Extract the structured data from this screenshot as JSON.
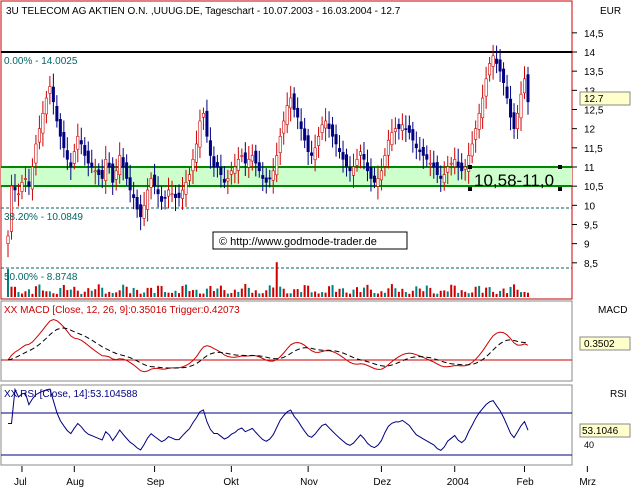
{
  "header": {
    "title": "3U TELECOM AG AKTIEN O.N. ,UUUG.DE, Tageschart - 10.07.2003 - 16.03.2004 - 12.7",
    "currency": "EUR"
  },
  "annotations": {
    "fib_top": "0.00% - 14.0025",
    "fib_mid": "38.20% - 10.0849",
    "fib_bottom": "50.00% - 8.8748",
    "zone_label": "10,58-11,0",
    "copyright": "© http://www.godmode-trader.de",
    "last_price": "12.7"
  },
  "macd": {
    "label": "XX MACD [Close, 12, 26, 9]:0.35016 Trigger:0.42073",
    "axis_title": "MACD",
    "current": "0.3502"
  },
  "rsi": {
    "label": "XX RSI [Close, 14]:53.104588",
    "axis_title": "RSI",
    "current": "53.1046"
  },
  "colors": {
    "up": "#cc0000",
    "down": "#000080",
    "zone": "#ccffcc",
    "zone_edge": "#008800",
    "fib": "#006666",
    "macd": "#cc0000",
    "trigger": "#000000",
    "rsi": "#000080"
  },
  "chart_data": {
    "type": "candlestick",
    "title": "3U TELECOM AG AKTIEN O.N. ,UUUG.DE, Tageschart - 10.07.2003 - 16.03.2004 - 12.7",
    "y_unit": "EUR",
    "y_ticks": [
      "14,5",
      "14",
      "13,5",
      "13",
      "12,5",
      "12",
      "11,5",
      "11",
      "10,5",
      "10",
      "9,5",
      "9",
      "8,5"
    ],
    "ylim": [
      8.3,
      14.6
    ],
    "x_ticks": [
      "Jul",
      "Aug",
      "Sep",
      "Okt",
      "Nov",
      "Dez",
      "2004",
      "Feb",
      "Mrz"
    ],
    "x_tick_index": [
      4,
      19,
      42,
      64,
      86,
      107,
      128,
      148,
      166
    ],
    "levels": [
      {
        "name": "resistance",
        "value": 14.0
      },
      {
        "name": "zone_top",
        "value": 11.0
      },
      {
        "name": "zone_bottom",
        "value": 10.58
      },
      {
        "name": "fib_38.2",
        "value": 10.0849
      },
      {
        "name": "fib_50",
        "value": 8.8748
      }
    ],
    "close": [
      9.2,
      10.5,
      10.4,
      10.3,
      10.6,
      10.7,
      10.5,
      11.0,
      11.6,
      12.0,
      12.4,
      12.8,
      13.1,
      12.7,
      12.2,
      11.8,
      11.5,
      11.2,
      11.0,
      11.4,
      11.8,
      11.6,
      11.3,
      11.1,
      11.0,
      10.9,
      10.8,
      10.7,
      11.2,
      11.0,
      10.6,
      10.9,
      11.3,
      11.0,
      10.7,
      10.4,
      10.2,
      9.9,
      9.7,
      10.0,
      10.4,
      10.7,
      10.5,
      10.3,
      10.1,
      10.2,
      10.4,
      10.3,
      10.2,
      10.2,
      10.4,
      10.6,
      10.8,
      11.2,
      11.6,
      12.2,
      12.4,
      11.8,
      11.3,
      11.0,
      11.0,
      10.8,
      10.6,
      10.7,
      10.9,
      11.0,
      11.2,
      11.3,
      11.1,
      11.2,
      11.3,
      11.1,
      10.9,
      10.7,
      10.6,
      10.7,
      10.9,
      11.3,
      11.8,
      12.2,
      12.6,
      12.8,
      12.5,
      12.3,
      12.0,
      11.7,
      11.4,
      11.3,
      11.5,
      11.8,
      12.1,
      12.2,
      12.0,
      11.8,
      11.6,
      11.4,
      11.2,
      11.0,
      10.9,
      11.0,
      11.2,
      11.4,
      11.2,
      10.9,
      10.7,
      10.6,
      10.7,
      10.9,
      11.3,
      11.7,
      11.9,
      12.0,
      12.0,
      12.1,
      12.0,
      11.9,
      11.7,
      11.5,
      11.4,
      11.3,
      11.2,
      11.1,
      11.0,
      10.8,
      10.7,
      10.8,
      11.0,
      11.1,
      11.2,
      11.0,
      10.9,
      11.0,
      11.3,
      11.6,
      12.0,
      12.4,
      12.8,
      13.3,
      13.7,
      13.9,
      13.7,
      13.5,
      13.2,
      12.8,
      12.3,
      12.0,
      12.4,
      12.9,
      13.3,
      12.7
    ]
  }
}
